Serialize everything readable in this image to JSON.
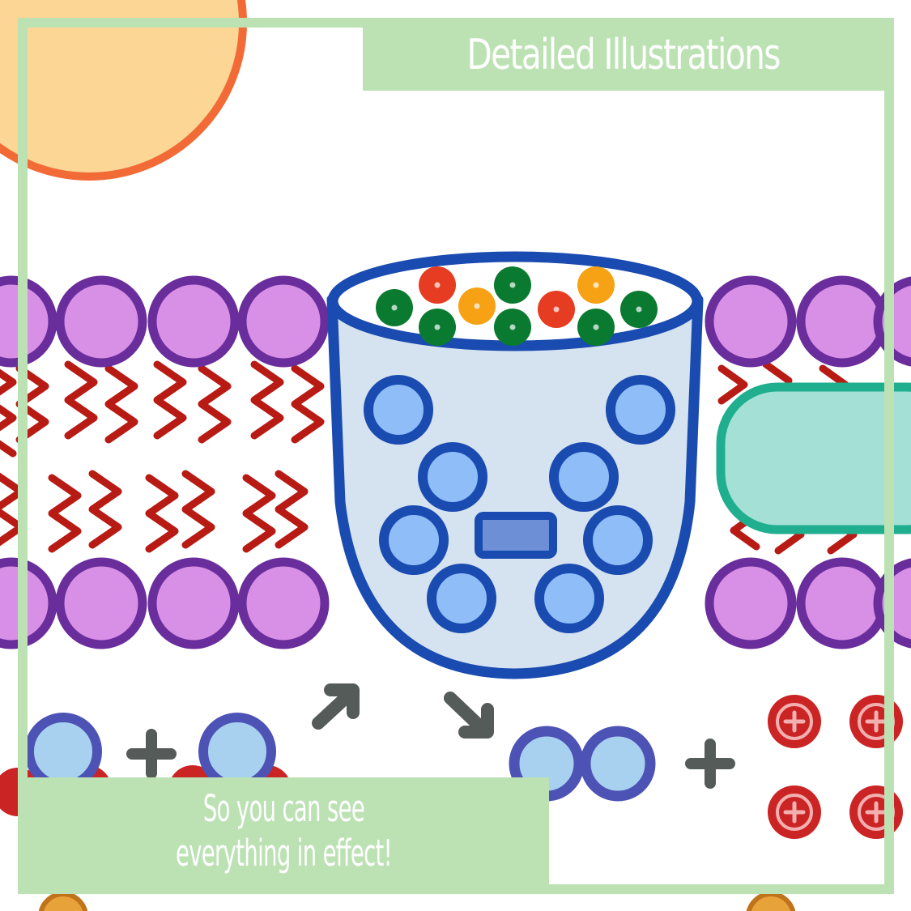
{
  "banner_top": {
    "text": "Detailed Illustrations"
  },
  "banner_bottom": {
    "line1": "So you can see",
    "line2": "everything in effect!"
  },
  "colors": {
    "frame": "#bce2b4",
    "lipid_head_fill": "#d88fe6",
    "lipid_head_stroke": "#6a2d9c",
    "lipid_tail": "#b81a14",
    "channel_fill": "#d5e2ef",
    "channel_stroke": "#1a4bb0",
    "ion_fill": "#8ebdf7",
    "green_dot": "#0a7a30",
    "red_dot": "#e63c22",
    "orange_dot": "#f7a115",
    "protein_fill": "#a5e0d6",
    "protein_stroke": "#1fae8e",
    "sun_fill": "#fbd695",
    "sun_stroke": "#f26a36",
    "arrow": "#555b59",
    "plus_ion_fill": "#cb2424"
  },
  "icons": [
    "sun-shape",
    "phospholipid-head",
    "lipid-tail",
    "ion-channel",
    "ion",
    "arrow-icon",
    "plus-icon",
    "proton-icon",
    "membrane-protein"
  ]
}
